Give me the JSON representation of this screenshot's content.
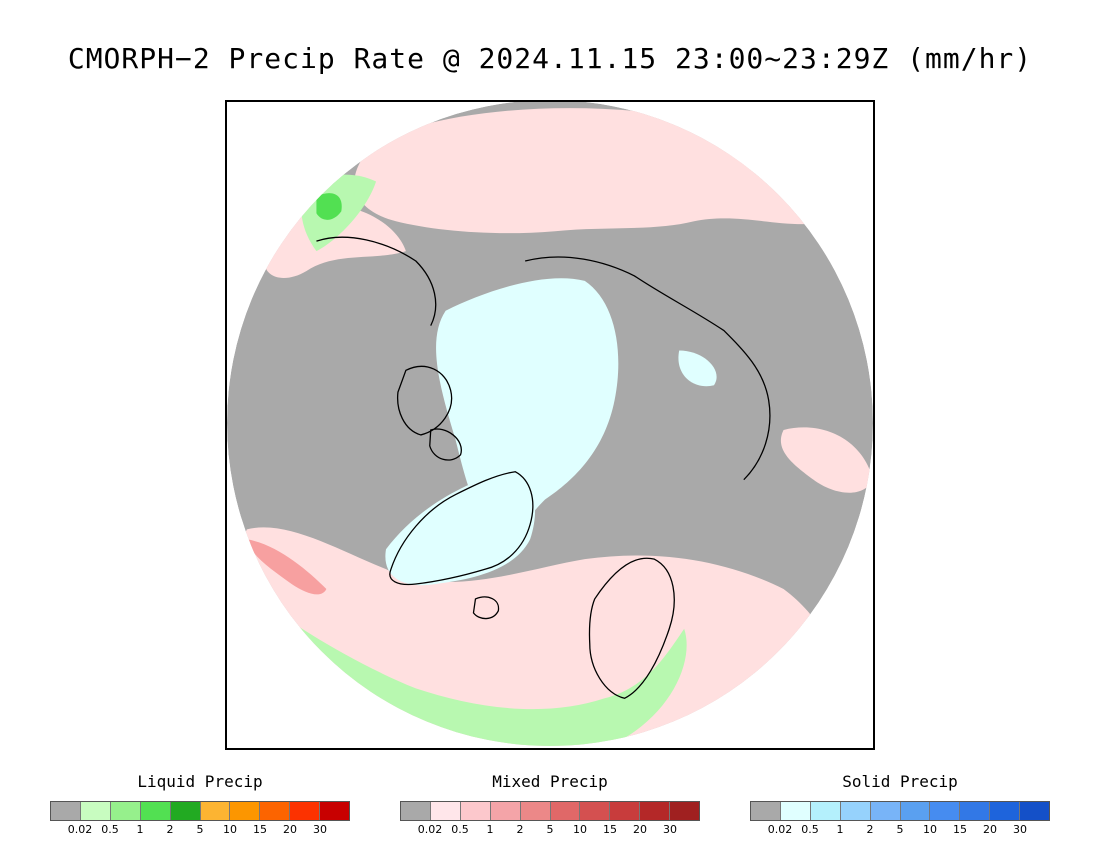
{
  "title": "CMORPH−2 Precip Rate @ 2024.11.15 23:00~23:29Z (mm/hr)",
  "map": {
    "projection": "north-polar-stereographic",
    "colors": {
      "background": "#a9a9a9",
      "mixed_light": "#ffe0e0",
      "solid_light": "#e0ffff",
      "liquid_light": "#b8f8b0",
      "liquid_medium": "#52e052",
      "liquid_dark": "#22aa22",
      "mixed_medium": "#f7a0a0",
      "coastline": "#000000"
    }
  },
  "legends": [
    {
      "title": "Liquid Precip",
      "colors": [
        "#a9a9a9",
        "#c8fcc0",
        "#96f08c",
        "#52e052",
        "#22aa22",
        "#fcb432",
        "#fc9600",
        "#fc6400",
        "#fc3200",
        "#c80000"
      ],
      "labels": [
        "0.02",
        "0.5",
        "1",
        "2",
        "5",
        "10",
        "15",
        "20",
        "30"
      ]
    },
    {
      "title": "Mixed Precip",
      "colors": [
        "#a9a9a9",
        "#ffe6ea",
        "#fcc8cc",
        "#f4a4a8",
        "#ec8888",
        "#e06868",
        "#d45050",
        "#c83c3c",
        "#b42828",
        "#a02020"
      ],
      "labels": [
        "0.02",
        "0.5",
        "1",
        "2",
        "5",
        "10",
        "15",
        "20",
        "30"
      ]
    },
    {
      "title": "Solid Precip",
      "colors": [
        "#a9a9a9",
        "#e0ffff",
        "#b4f0fc",
        "#96d2fc",
        "#78b4f8",
        "#5aa0f0",
        "#468cf0",
        "#3278e6",
        "#1e64dc",
        "#1450c8"
      ],
      "labels": [
        "0.02",
        "0.5",
        "1",
        "2",
        "5",
        "10",
        "15",
        "20",
        "30"
      ]
    }
  ]
}
